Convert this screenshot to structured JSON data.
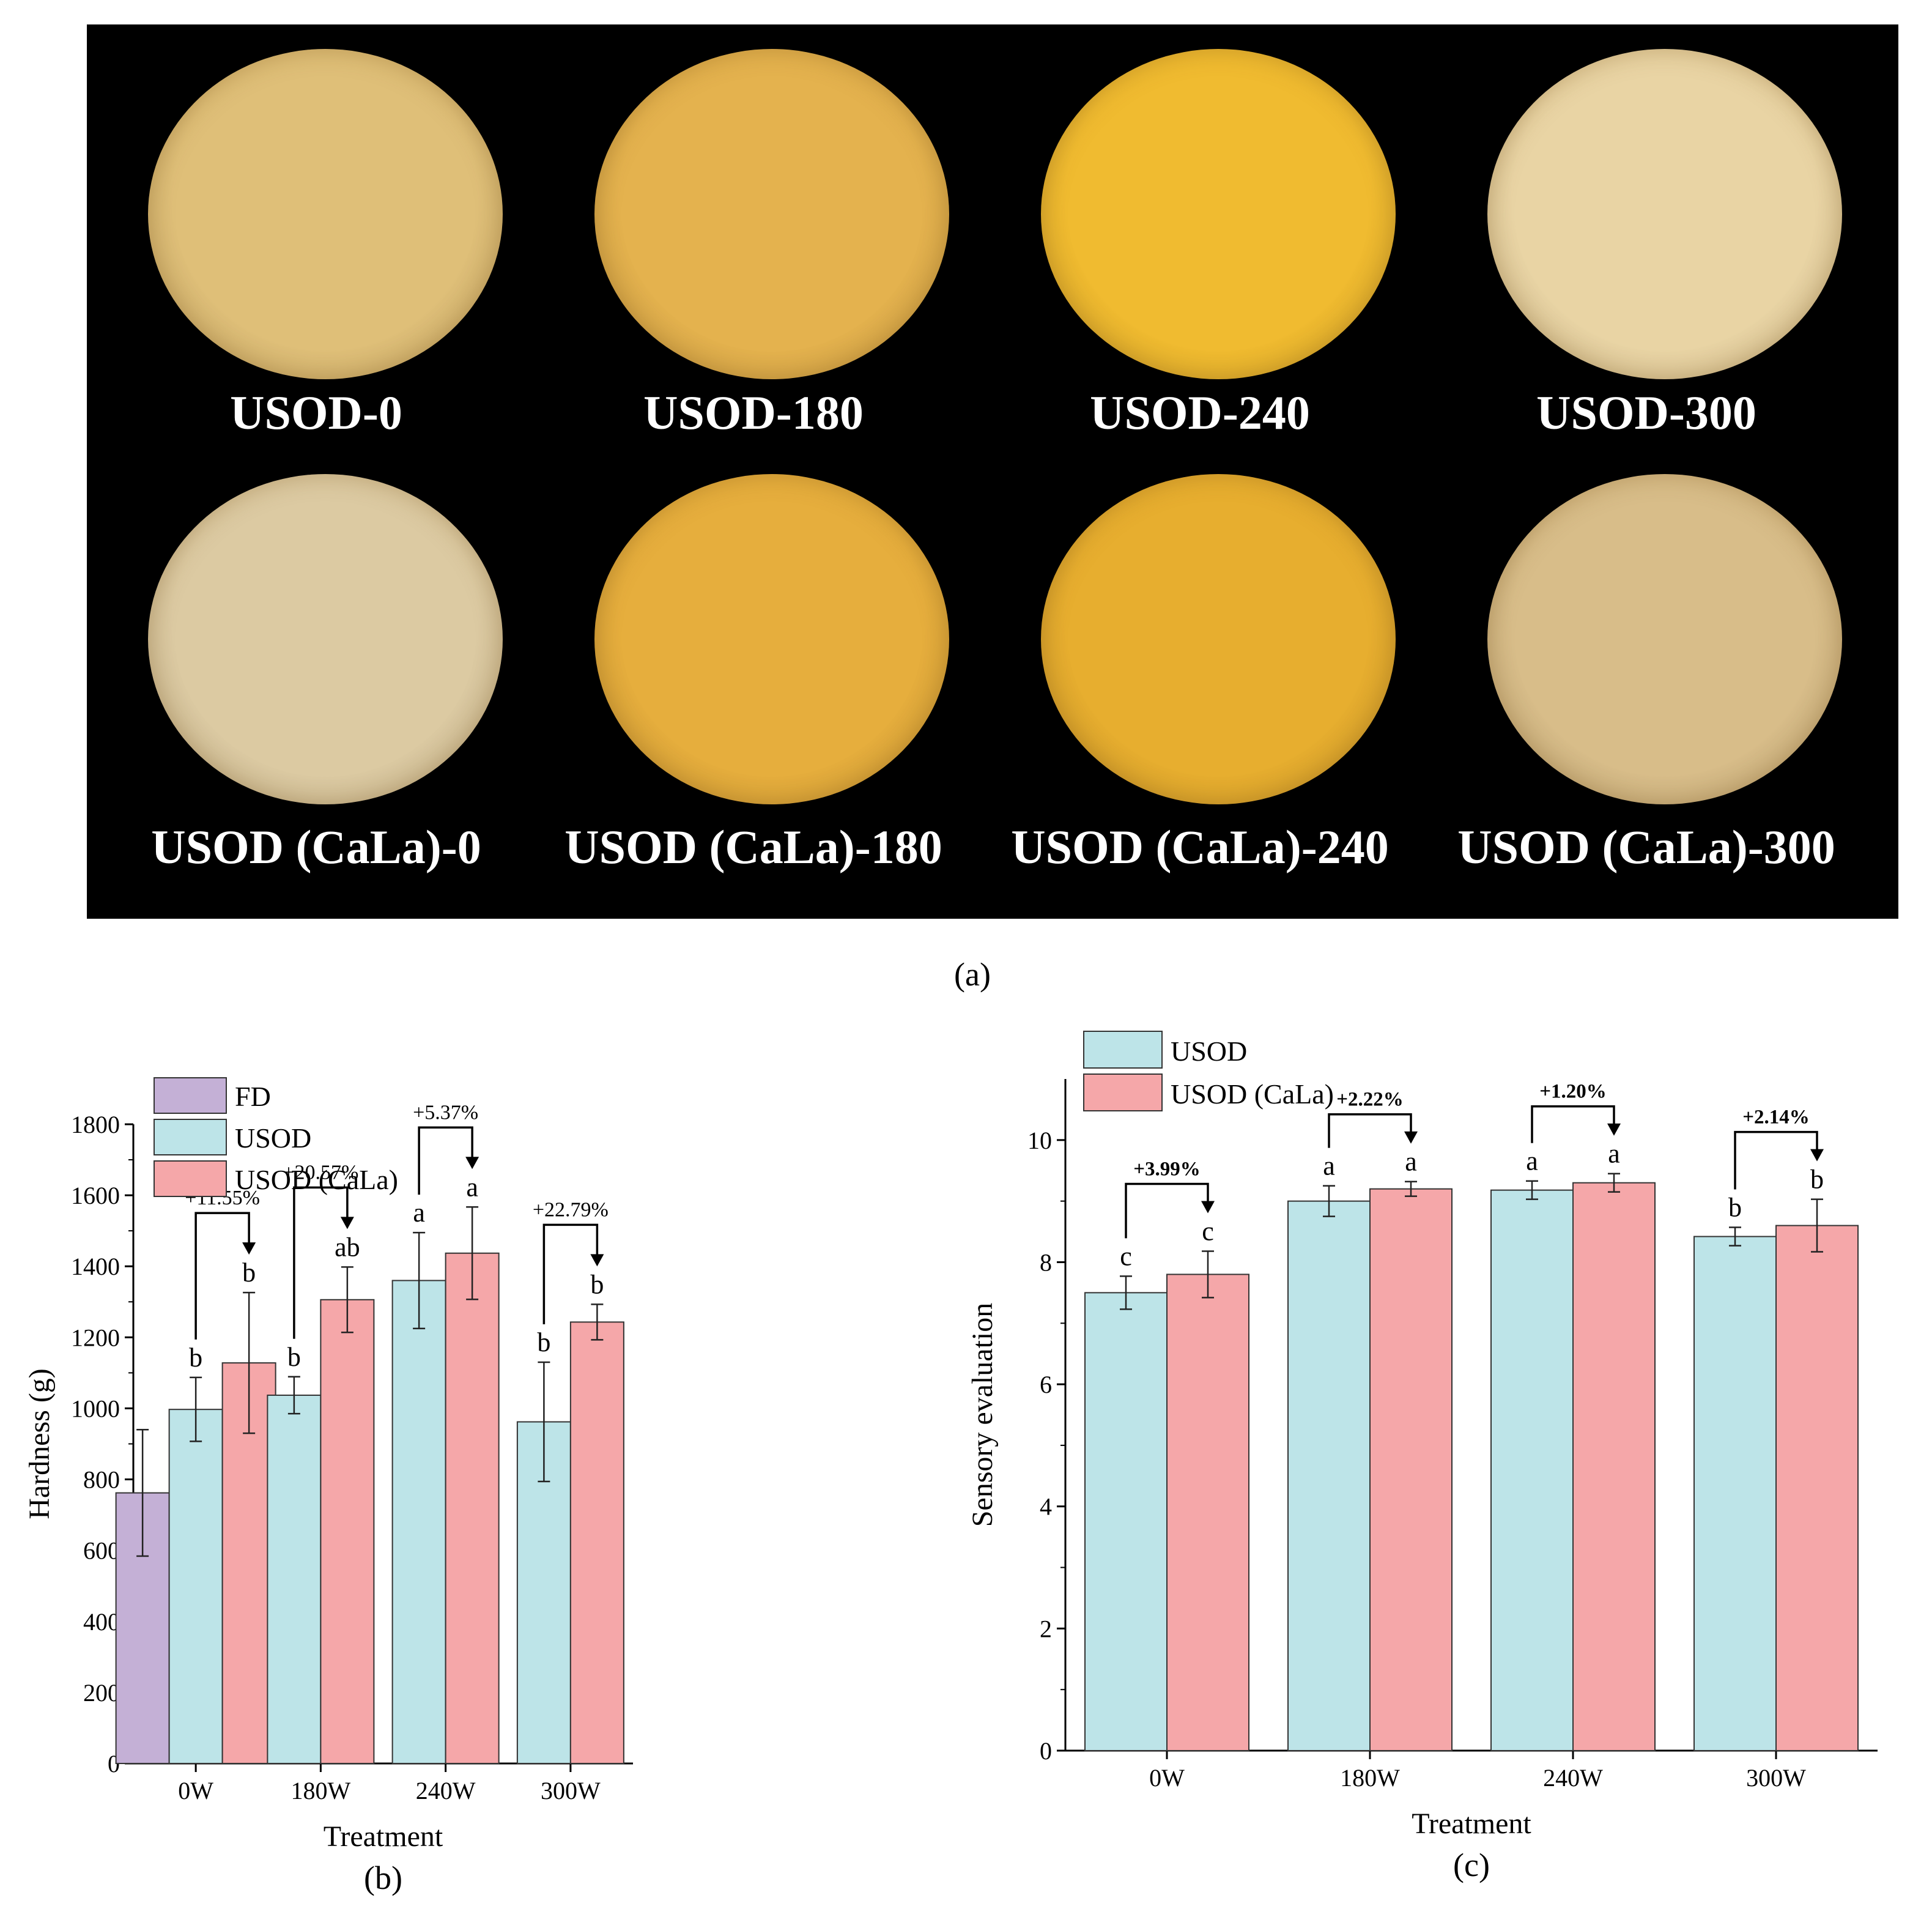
{
  "photo_panel": {
    "labels": [
      "USOD-0",
      "USOD-180",
      "USOD-240",
      "USOD-300",
      "USOD (CaLa)-0",
      "USOD (CaLa)-180",
      "USOD (CaLa)-240",
      "USOD (CaLa)-300"
    ],
    "colors": [
      "#dfbf78",
      "#e4b24e",
      "#f0bb30",
      "#e9d4a4",
      "#dccaa2",
      "#e6ae3d",
      "#e7ae2f",
      "#d8bd89"
    ],
    "background": "#000000"
  },
  "panel_letters": {
    "a": "(a)",
    "b": "(b)",
    "c": "(c)"
  },
  "chart_data": [
    {
      "type": "bar",
      "panel": "(b)",
      "xlabel": "Treatment",
      "ylabel": "Hardness (g)",
      "ylim": [
        0,
        1800
      ],
      "yticks": [
        0,
        200,
        400,
        600,
        800,
        1000,
        1200,
        1400,
        1600,
        1800
      ],
      "categories": [
        "0W",
        "180W",
        "240W",
        "300W"
      ],
      "legend_position": "top-left",
      "series": [
        {
          "name": "FD",
          "color": "#c4b0d6",
          "values": [
            762,
            null,
            null,
            null
          ],
          "errors": [
            178,
            null,
            null,
            null
          ],
          "letters": [
            "",
            "",
            "",
            ""
          ]
        },
        {
          "name": "USOD",
          "color": "#bde4e8",
          "values": [
            997,
            1037,
            1360,
            962
          ],
          "errors": [
            90,
            52,
            135,
            168
          ],
          "letters": [
            "b",
            "b",
            "a",
            "b"
          ]
        },
        {
          "name": "USOD (CaLa)",
          "color": "#f5a7a9",
          "values": [
            1128,
            1306,
            1437,
            1243
          ],
          "errors": [
            198,
            92,
            130,
            50
          ],
          "letters": [
            "b",
            "ab",
            "a",
            "b"
          ]
        }
      ],
      "annotations": [
        "+11.55%",
        "+20.57%",
        "+5.37%",
        "+22.79%"
      ]
    },
    {
      "type": "bar",
      "panel": "(c)",
      "xlabel": "Treatment",
      "ylabel": "Sensory evaluation",
      "ylim": [
        0,
        11
      ],
      "yticks": [
        0,
        2,
        4,
        6,
        8,
        10
      ],
      "categories": [
        "0W",
        "180W",
        "240W",
        "300W"
      ],
      "legend_position": "top-left",
      "series": [
        {
          "name": "USOD",
          "color": "#bde4e8",
          "values": [
            7.5,
            9.0,
            9.18,
            8.42
          ],
          "errors": [
            0.27,
            0.25,
            0.15,
            0.15
          ],
          "letters": [
            "c",
            "a",
            "a",
            "b"
          ]
        },
        {
          "name": "USOD (CaLa)",
          "color": "#f5a7a9",
          "values": [
            7.8,
            9.2,
            9.3,
            8.6
          ],
          "errors": [
            0.38,
            0.12,
            0.15,
            0.43
          ],
          "letters": [
            "c",
            "a",
            "a",
            "b"
          ]
        }
      ],
      "annotations": [
        "+3.99%",
        "+2.22%",
        "+1.20%",
        "+2.14%"
      ]
    }
  ]
}
